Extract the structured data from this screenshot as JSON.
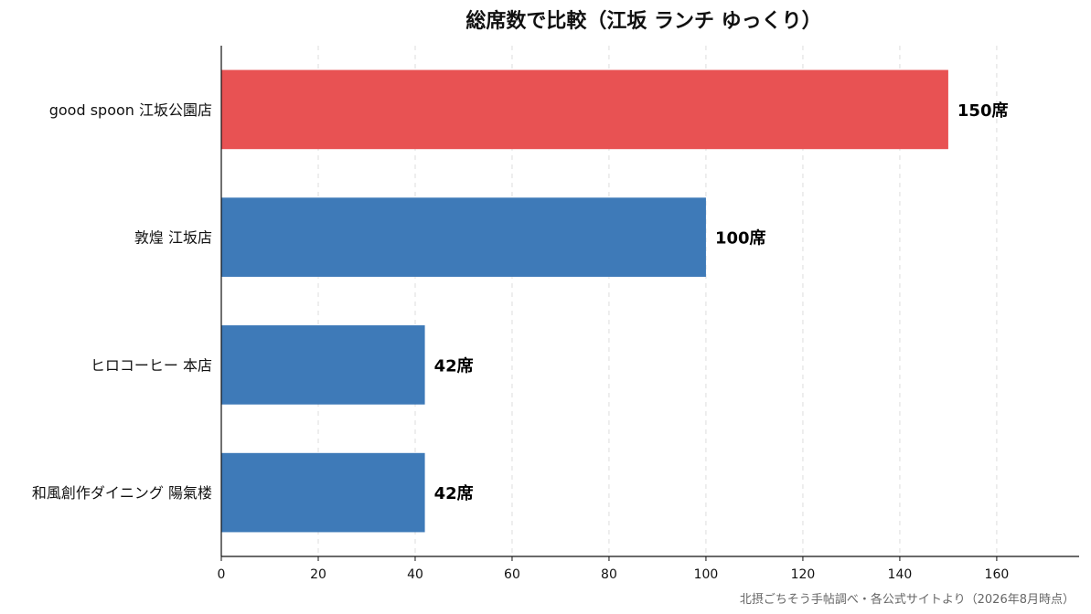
{
  "chart_data": {
    "type": "bar",
    "orientation": "horizontal",
    "title": "総席数で比較（江坂 ランチ ゆっくり）",
    "categories": [
      "good spoon 江坂公園店",
      "敦煌 江坂店",
      "ヒロコーヒー 本店",
      "和風創作ダイニング 陽氣楼"
    ],
    "values": [
      150,
      100,
      42,
      42
    ],
    "value_labels": [
      "150席",
      "100席",
      "42席",
      "42席"
    ],
    "bar_colors": [
      "#e85253",
      "#3e7ab8",
      "#3e7ab8",
      "#3e7ab8"
    ],
    "xlim": [
      0,
      177
    ],
    "xticks": [
      0,
      20,
      40,
      60,
      80,
      100,
      120,
      140,
      160
    ],
    "grid": "vertical dashed",
    "source": "北摂ごちそう手帖調べ・各公式サイトより（2026年8月時点）"
  }
}
